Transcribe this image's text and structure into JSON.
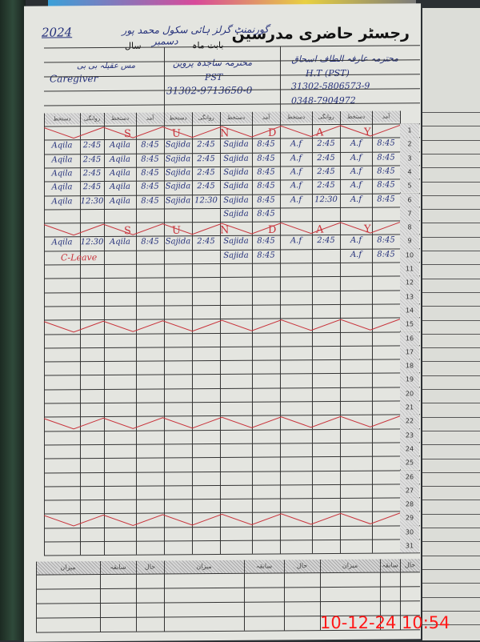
{
  "register": {
    "title": "رجسٹر حاضری مدرسین",
    "school": "گورنمنٹ گرلز ہائی سکول محمد پور",
    "month_label": "بابت ماہ",
    "month": "دسمبر",
    "year_label": "سال",
    "year": "2024"
  },
  "teachers": [
    {
      "name": "محترمہ عارفہ الطاف اسحاق",
      "designation": "H.T (PST)",
      "cnic": "31302-5806573-9",
      "phone": "0348-7904972"
    },
    {
      "name": "محترمہ ساجدہ پروین",
      "designation": "PST",
      "cnic": "31302-9713650-0"
    },
    {
      "name": "مس عقیلہ بی بی",
      "designation": "Caregiver"
    }
  ],
  "column_headers": [
    "دستخط",
    "روانگی",
    "دستخط",
    "آمد",
    "دستخط",
    "روانگی",
    "دستخط",
    "آمد",
    "دستخط",
    "روانگی",
    "دستخط",
    "آمد"
  ],
  "sunday_letters": [
    "S",
    "U",
    "N",
    "D",
    "A",
    "Y"
  ],
  "sunday_rows": [
    1,
    8,
    15,
    22,
    29
  ],
  "rows": [
    {
      "day": 1,
      "cells": [
        "",
        "",
        "",
        "",
        "",
        "",
        "",
        "",
        "",
        "",
        "",
        ""
      ]
    },
    {
      "day": 2,
      "cells": [
        "Aqila",
        "2:45",
        "Aqila",
        "8:45",
        "Sajida",
        "2:45",
        "Sajida",
        "8:45",
        "A.f",
        "2:45",
        "A.f",
        "8:45"
      ]
    },
    {
      "day": 3,
      "cells": [
        "Aqila",
        "2:45",
        "Aqila",
        "8:45",
        "Sajida",
        "2:45",
        "Sajida",
        "8:45",
        "A.f",
        "2:45",
        "A.f",
        "8:45"
      ]
    },
    {
      "day": 4,
      "cells": [
        "Aqila",
        "2:45",
        "Aqila",
        "8:45",
        "Sajida",
        "2:45",
        "Sajida",
        "8:45",
        "A.f",
        "2:45",
        "A.f",
        "8:45"
      ]
    },
    {
      "day": 5,
      "cells": [
        "Aqila",
        "2:45",
        "Aqila",
        "8:45",
        "Sajida",
        "2:45",
        "Sajida",
        "8:45",
        "A.f",
        "2:45",
        "A.f",
        "8:45"
      ]
    },
    {
      "day": 6,
      "cells": [
        "Aqila",
        "12:30",
        "Aqila",
        "8:45",
        "Sajida",
        "12:30",
        "Sajida",
        "8:45",
        "A.f",
        "12:30",
        "A.f",
        "8:45"
      ]
    },
    {
      "day": 7,
      "cells": [
        "",
        "",
        "",
        "",
        "",
        "",
        "Sajida",
        "8:45",
        "",
        "",
        "",
        ""
      ]
    },
    {
      "day": 8,
      "cells": [
        "",
        "",
        "",
        "",
        "",
        "",
        "",
        "",
        "",
        "",
        "",
        ""
      ]
    },
    {
      "day": 9,
      "cells": [
        "Aqila",
        "12:30",
        "Aqila",
        "8:45",
        "Sajida",
        "2:45",
        "Sajida",
        "8:45",
        "A.f",
        "2:45",
        "A.f",
        "8:45"
      ]
    },
    {
      "day": 10,
      "cells": [
        "",
        "",
        "",
        "",
        "",
        "",
        "Sajida",
        "8:45",
        "",
        "",
        "A.f",
        "8:45"
      ]
    }
  ],
  "leave_note": "C-Leave",
  "summary_headers": [
    "میزان",
    "سابقہ",
    "حال",
    "میزان",
    "سابقہ",
    "حال",
    "میزان",
    "سابقہ",
    "حال"
  ],
  "photo_timestamp": "10-12-24  10:54",
  "colors": {
    "ink": "#24307a",
    "red_ink": "#c8323a",
    "timestamp": "#ff1a1a"
  }
}
